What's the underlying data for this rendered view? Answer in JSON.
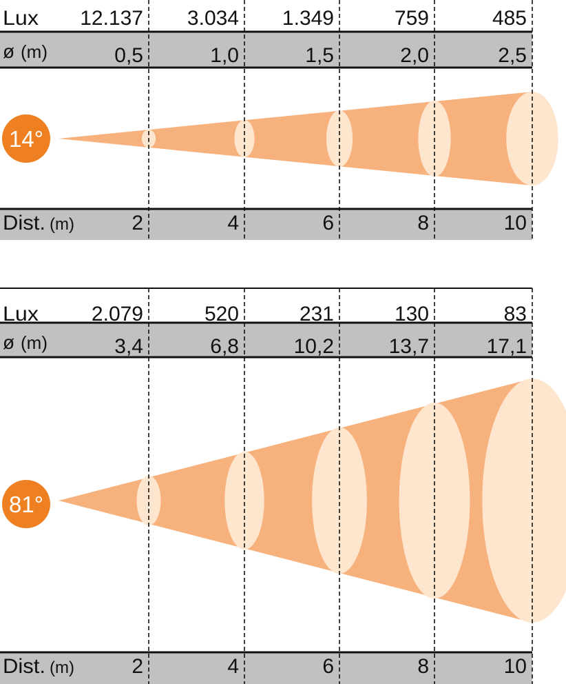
{
  "colors": {
    "beam": "#F7B17D",
    "spot": "#FDE5CE",
    "badge": "#EF8021",
    "gray_band": "#BFC1C3",
    "rule": "#111111"
  },
  "diagrams": [
    {
      "angle": "14°",
      "lux_label": "Lux",
      "diameter_label": "ø",
      "diameter_unit": "(m)",
      "dist_label": "Dist.",
      "dist_unit": "(m)",
      "lux_values": [
        "12.137",
        "3.034",
        "1.349",
        "759",
        "485"
      ],
      "diameter_values": [
        "0,5",
        "1,0",
        "1,5",
        "2,0",
        "2,5"
      ],
      "distances": [
        "2",
        "4",
        "6",
        "8",
        "10"
      ]
    },
    {
      "angle": "81°",
      "lux_label": "Lux",
      "diameter_label": "ø",
      "diameter_unit": "(m)",
      "dist_label": "Dist.",
      "dist_unit": "(m)",
      "lux_values": [
        "2.079",
        "520",
        "231",
        "130",
        "83"
      ],
      "diameter_values": [
        "3,4",
        "6,8",
        "10,2",
        "13,7",
        "17,1"
      ],
      "distances": [
        "2",
        "4",
        "6",
        "8",
        "10"
      ]
    }
  ]
}
